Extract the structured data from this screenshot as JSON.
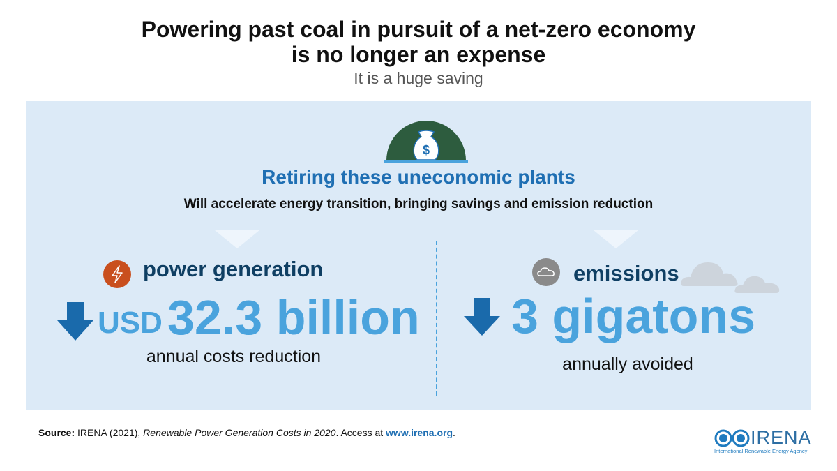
{
  "title": {
    "line1": "Powering past coal in pursuit of a net-zero economy",
    "line2": "is no longer an expense",
    "subtitle": "It is a huge saving"
  },
  "panel": {
    "heading": "Retiring these uneconomic plants",
    "subheading": "Will accelerate energy transition, bringing savings and emission reduction"
  },
  "left": {
    "label": "power generation",
    "currency": "USD",
    "value": "32.3 billion",
    "caption": "annual costs reduction"
  },
  "right": {
    "label": "emissions",
    "value": "3 gigatons",
    "caption": "annually avoided"
  },
  "source": {
    "prefix": "Source:",
    "text": " IRENA (2021), ",
    "publication": "Renewable Power Generation Costs in 2020",
    "access": ". Access at ",
    "link": "www.irena.org",
    "end": "."
  },
  "logo": {
    "name": "IRENA",
    "tagline": "International Renewable Energy Agency"
  },
  "colors": {
    "panel": "#dceaf7",
    "heading": "#1f6fb3",
    "navy": "#0f3f63",
    "number": "#4aa3dd",
    "arrow": "#1a6aab",
    "dome": "#2d5c3e",
    "bolt": "#c94f1e",
    "cloud": "#8a8a8a"
  }
}
